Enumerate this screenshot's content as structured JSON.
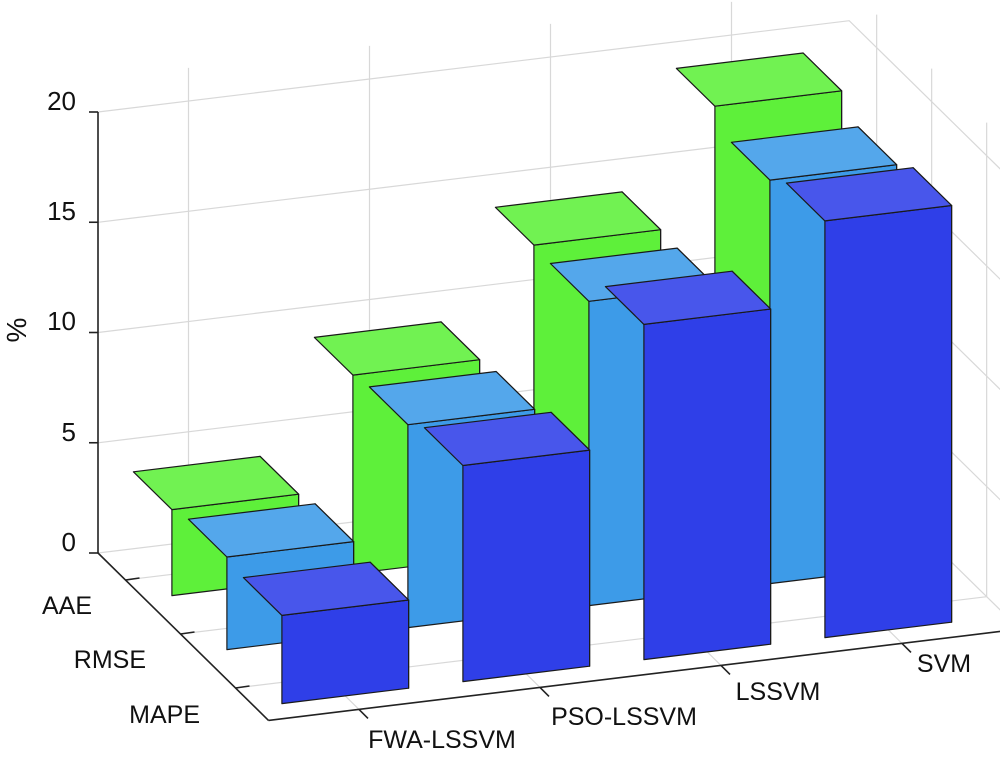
{
  "chart_data": {
    "type": "bar",
    "title": "",
    "xlabel": "",
    "ylabel": "%",
    "ylim": [
      0,
      20
    ],
    "yticks": [
      "0",
      "5",
      "10",
      "15",
      "20"
    ],
    "categories": [
      "FWA-LSSVM",
      "PSO-LSSVM",
      "LSSVM",
      "SVM"
    ],
    "series": [
      {
        "name": "AAE",
        "values": [
          3.9,
          9.0,
          13.9,
          19.2
        ],
        "color": "#5ef03a"
      },
      {
        "name": "RMSE",
        "values": [
          4.2,
          9.2,
          13.8,
          18.3
        ],
        "color": "#3d9be8"
      },
      {
        "name": "MAPE",
        "values": [
          4.0,
          9.8,
          15.2,
          18.9
        ],
        "color": "#2f3fe8"
      }
    ],
    "grid": true
  }
}
